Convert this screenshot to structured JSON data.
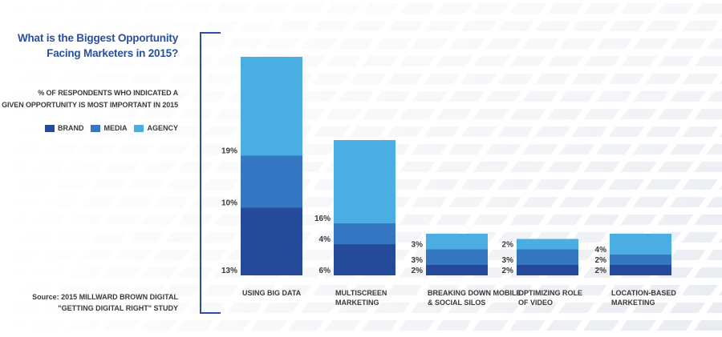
{
  "header": {
    "title_line1": "What is the Biggest Opportunity",
    "title_line2": "Facing Marketers in 2015?",
    "subtitle_line1": "% OF RESPONDENTS WHO INDICATED A",
    "subtitle_line2": "GIVEN OPPORTUNITY IS MOST IMPORTANT IN 2015"
  },
  "legend": [
    {
      "label": "BRAND",
      "color": "#264a9a"
    },
    {
      "label": "MEDIA",
      "color": "#3677c4"
    },
    {
      "label": "AGENCY",
      "color": "#4aaee2"
    }
  ],
  "source": {
    "line1": "Source: 2015 MILLWARD BROWN DIGITAL",
    "line2": "\"GETTING DIGITAL RIGHT\" STUDY"
  },
  "chart_data": {
    "type": "bar",
    "stacked": true,
    "categories": [
      [
        "USING BIG DATA"
      ],
      [
        "MULTISCREEN",
        "MARKETING"
      ],
      [
        "BREAKING DOWN MOBILE",
        "& SOCIAL SILOS"
      ],
      [
        "OPTIMIZING ROLE",
        "OF VIDEO"
      ],
      [
        "LOCATION-BASED",
        "MARKETING"
      ]
    ],
    "series": [
      {
        "name": "BRAND",
        "color": "#264a9a",
        "values": [
          13,
          6,
          2,
          2,
          2
        ]
      },
      {
        "name": "MEDIA",
        "color": "#3677c4",
        "values": [
          10,
          4,
          3,
          3,
          2
        ]
      },
      {
        "name": "AGENCY",
        "color": "#4aaee2",
        "values": [
          19,
          16,
          3,
          2,
          4
        ]
      }
    ],
    "value_labels": [
      [
        "13%",
        "10%",
        "19%"
      ],
      [
        "6%",
        "4%",
        "16%"
      ],
      [
        "2%",
        "3%",
        "3%"
      ],
      [
        "2%",
        "3%",
        "2%"
      ],
      [
        "2%",
        "2%",
        "4%"
      ]
    ],
    "ylim": [
      0,
      42
    ],
    "grid": false,
    "legend_position": "left"
  }
}
